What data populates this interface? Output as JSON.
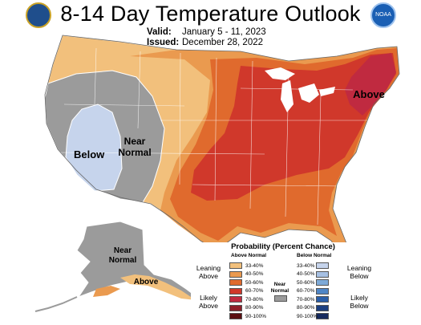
{
  "header": {
    "title": "8-14 Day Temperature Outlook",
    "valid_label": "Valid:",
    "valid_value": "January 5 - 11, 2023",
    "issued_label": "Issued:",
    "issued_value": "December 28, 2022",
    "noaa_text": "NOAA"
  },
  "map_labels": {
    "below": "Below",
    "near_normal_1": "Near",
    "near_normal_2": "Normal",
    "above_ne": "Above",
    "ak_near_1": "Near",
    "ak_near_2": "Normal",
    "ak_above": "Above"
  },
  "colors": {
    "above_33_40": "#f2c07c",
    "above_40_50": "#ea9a4f",
    "above_50_60": "#e06a2d",
    "above_60_70": "#d0382b",
    "above_70_80": "#c02a40",
    "above_80_90": "#8e1f2a",
    "above_90_100": "#5a0f12",
    "near_normal": "#9b9b9b",
    "below_33_40": "#c6d4ec",
    "below_40_50": "#a6c0e3",
    "below_50_60": "#7eaad8",
    "below_60_70": "#4f86c6",
    "below_70_80": "#2a5ea8",
    "below_80_90": "#1c3f80",
    "below_90_100": "#162a5e"
  },
  "legend": {
    "title": "Probability (Percent Chance)",
    "above_header": "Above Normal",
    "below_header": "Below Normal",
    "above_items": [
      "33-40%",
      "40-50%",
      "50-60%",
      "60-70%",
      "70-80%",
      "80-90%",
      "90-100%"
    ],
    "below_items": [
      "33-40%",
      "40-50%",
      "50-60%",
      "60-70%",
      "70-80%",
      "80-90%",
      "90-100%"
    ],
    "leaning_above_1": "Leaning",
    "leaning_above_2": "Above",
    "likely_above_1": "Likely",
    "likely_above_2": "Above",
    "leaning_below_1": "Leaning",
    "leaning_below_2": "Below",
    "likely_below_1": "Likely",
    "likely_below_2": "Below",
    "near_normal_1": "Near",
    "near_normal_2": "Normal"
  }
}
